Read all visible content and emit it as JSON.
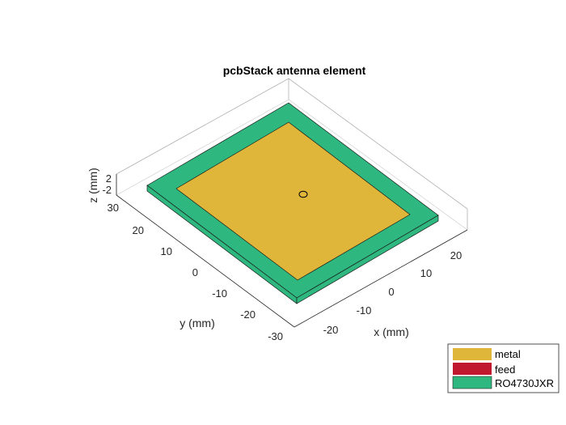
{
  "chart_data": {
    "type": "3d-geometry",
    "title": "pcbStack antenna element",
    "xlabel": "x (mm)",
    "ylabel": "y (mm)",
    "zlabel": "z (mm)",
    "x_ticks": [
      "-20",
      "-10",
      "0",
      "10",
      "20"
    ],
    "y_ticks": [
      "30",
      "20",
      "10",
      "0",
      "-10",
      "-20",
      "-30"
    ],
    "z_ticks": [
      "2",
      "-2"
    ],
    "layers": [
      {
        "name": "RO4730JXR",
        "color": "#2eb87f",
        "x_range": [
          -30,
          30
        ],
        "y_range": [
          -30,
          30
        ]
      },
      {
        "name": "metal",
        "color": "#dfb63a",
        "x_range": [
          -23,
          23
        ],
        "y_range": [
          -23,
          23
        ]
      }
    ],
    "feed_point": {
      "x": 0,
      "y": 5
    },
    "legend": {
      "placement": "bottom-right",
      "items": [
        {
          "label": "metal",
          "color": "#dfb63a"
        },
        {
          "label": "feed",
          "color": "#c0182e"
        },
        {
          "label": "RO4730JXR",
          "color": "#2eb87f"
        }
      ]
    }
  }
}
